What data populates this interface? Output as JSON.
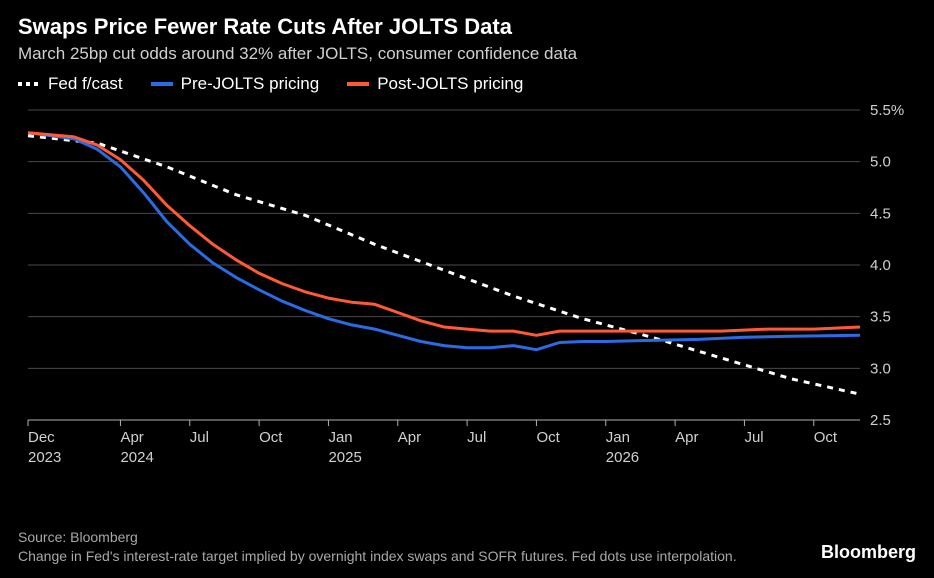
{
  "title": "Swaps Price Fewer Rate Cuts After JOLTS Data",
  "subtitle": "March 25bp cut odds around 32% after JOLTS, consumer confidence data",
  "legend": [
    {
      "label": "Fed f/cast",
      "color": "#ffffff",
      "style": "dashed"
    },
    {
      "label": "Pre-JOLTS pricing",
      "color": "#2b6be4",
      "style": "solid"
    },
    {
      "label": "Post-JOLTS pricing",
      "color": "#ff5a36",
      "style": "solid"
    }
  ],
  "chart": {
    "type": "line",
    "background_color": "#000000",
    "grid_color": "#4a4a4a",
    "axis_color": "#b0b0b0",
    "tick_font_size": 15,
    "tick_color": "#d0d0d0",
    "line_width": 3,
    "dashed_pattern": "6,6",
    "x_domain": [
      0,
      36
    ],
    "y_domain": [
      2.5,
      5.5
    ],
    "y_ticks": [
      {
        "v": 5.5,
        "label": "5.5%"
      },
      {
        "v": 5.0,
        "label": "5.0"
      },
      {
        "v": 4.5,
        "label": "4.5"
      },
      {
        "v": 4.0,
        "label": "4.0"
      },
      {
        "v": 3.5,
        "label": "3.5"
      },
      {
        "v": 3.0,
        "label": "3.0"
      },
      {
        "v": 2.5,
        "label": "2.5"
      }
    ],
    "x_ticks": [
      {
        "v": 0,
        "top": "Dec",
        "bottom": "2023"
      },
      {
        "v": 4,
        "top": "Apr",
        "bottom": "2024"
      },
      {
        "v": 7,
        "top": "Jul",
        "bottom": ""
      },
      {
        "v": 10,
        "top": "Oct",
        "bottom": ""
      },
      {
        "v": 13,
        "top": "Jan",
        "bottom": "2025"
      },
      {
        "v": 16,
        "top": "Apr",
        "bottom": ""
      },
      {
        "v": 19,
        "top": "Jul",
        "bottom": ""
      },
      {
        "v": 22,
        "top": "Oct",
        "bottom": ""
      },
      {
        "v": 25,
        "top": "Jan",
        "bottom": "2026"
      },
      {
        "v": 28,
        "top": "Apr",
        "bottom": ""
      },
      {
        "v": 31,
        "top": "Jul",
        "bottom": ""
      },
      {
        "v": 34,
        "top": "Oct",
        "bottom": ""
      }
    ],
    "series": {
      "fed_fcast": [
        {
          "x": 0,
          "y": 5.25
        },
        {
          "x": 3,
          "y": 5.18
        },
        {
          "x": 6,
          "y": 4.95
        },
        {
          "x": 9,
          "y": 4.68
        },
        {
          "x": 12,
          "y": 4.48
        },
        {
          "x": 15,
          "y": 4.2
        },
        {
          "x": 18,
          "y": 3.95
        },
        {
          "x": 21,
          "y": 3.7
        },
        {
          "x": 24,
          "y": 3.48
        },
        {
          "x": 27,
          "y": 3.3
        },
        {
          "x": 30,
          "y": 3.1
        },
        {
          "x": 33,
          "y": 2.9
        },
        {
          "x": 36,
          "y": 2.75
        }
      ],
      "pre_jolts": [
        {
          "x": 0,
          "y": 5.28
        },
        {
          "x": 2,
          "y": 5.22
        },
        {
          "x": 3,
          "y": 5.12
        },
        {
          "x": 4,
          "y": 4.95
        },
        {
          "x": 5,
          "y": 4.7
        },
        {
          "x": 6,
          "y": 4.42
        },
        {
          "x": 7,
          "y": 4.2
        },
        {
          "x": 8,
          "y": 4.02
        },
        {
          "x": 9,
          "y": 3.88
        },
        {
          "x": 10,
          "y": 3.76
        },
        {
          "x": 11,
          "y": 3.65
        },
        {
          "x": 12,
          "y": 3.56
        },
        {
          "x": 13,
          "y": 3.48
        },
        {
          "x": 14,
          "y": 3.42
        },
        {
          "x": 15,
          "y": 3.38
        },
        {
          "x": 16,
          "y": 3.32
        },
        {
          "x": 17,
          "y": 3.26
        },
        {
          "x": 18,
          "y": 3.22
        },
        {
          "x": 19,
          "y": 3.2
        },
        {
          "x": 20,
          "y": 3.2
        },
        {
          "x": 21,
          "y": 3.22
        },
        {
          "x": 22,
          "y": 3.18
        },
        {
          "x": 23,
          "y": 3.25
        },
        {
          "x": 24,
          "y": 3.26
        },
        {
          "x": 25,
          "y": 3.26
        },
        {
          "x": 27,
          "y": 3.27
        },
        {
          "x": 29,
          "y": 3.28
        },
        {
          "x": 31,
          "y": 3.3
        },
        {
          "x": 33,
          "y": 3.31
        },
        {
          "x": 36,
          "y": 3.32
        }
      ],
      "post_jolts": [
        {
          "x": 0,
          "y": 5.28
        },
        {
          "x": 2,
          "y": 5.24
        },
        {
          "x": 3,
          "y": 5.16
        },
        {
          "x": 4,
          "y": 5.02
        },
        {
          "x": 5,
          "y": 4.82
        },
        {
          "x": 6,
          "y": 4.58
        },
        {
          "x": 7,
          "y": 4.38
        },
        {
          "x": 8,
          "y": 4.2
        },
        {
          "x": 9,
          "y": 4.05
        },
        {
          "x": 10,
          "y": 3.92
        },
        {
          "x": 11,
          "y": 3.82
        },
        {
          "x": 12,
          "y": 3.74
        },
        {
          "x": 13,
          "y": 3.68
        },
        {
          "x": 14,
          "y": 3.64
        },
        {
          "x": 15,
          "y": 3.62
        },
        {
          "x": 16,
          "y": 3.54
        },
        {
          "x": 17,
          "y": 3.46
        },
        {
          "x": 18,
          "y": 3.4
        },
        {
          "x": 19,
          "y": 3.38
        },
        {
          "x": 20,
          "y": 3.36
        },
        {
          "x": 21,
          "y": 3.36
        },
        {
          "x": 22,
          "y": 3.32
        },
        {
          "x": 23,
          "y": 3.36
        },
        {
          "x": 24,
          "y": 3.36
        },
        {
          "x": 26,
          "y": 3.36
        },
        {
          "x": 28,
          "y": 3.36
        },
        {
          "x": 30,
          "y": 3.36
        },
        {
          "x": 32,
          "y": 3.38
        },
        {
          "x": 34,
          "y": 3.38
        },
        {
          "x": 36,
          "y": 3.4
        }
      ]
    }
  },
  "footer": {
    "source": "Source: Bloomberg",
    "note": "Change in Fed's interest-rate target implied by overnight index swaps and SOFR futures. Fed dots use interpolation.",
    "brand": "Bloomberg"
  }
}
